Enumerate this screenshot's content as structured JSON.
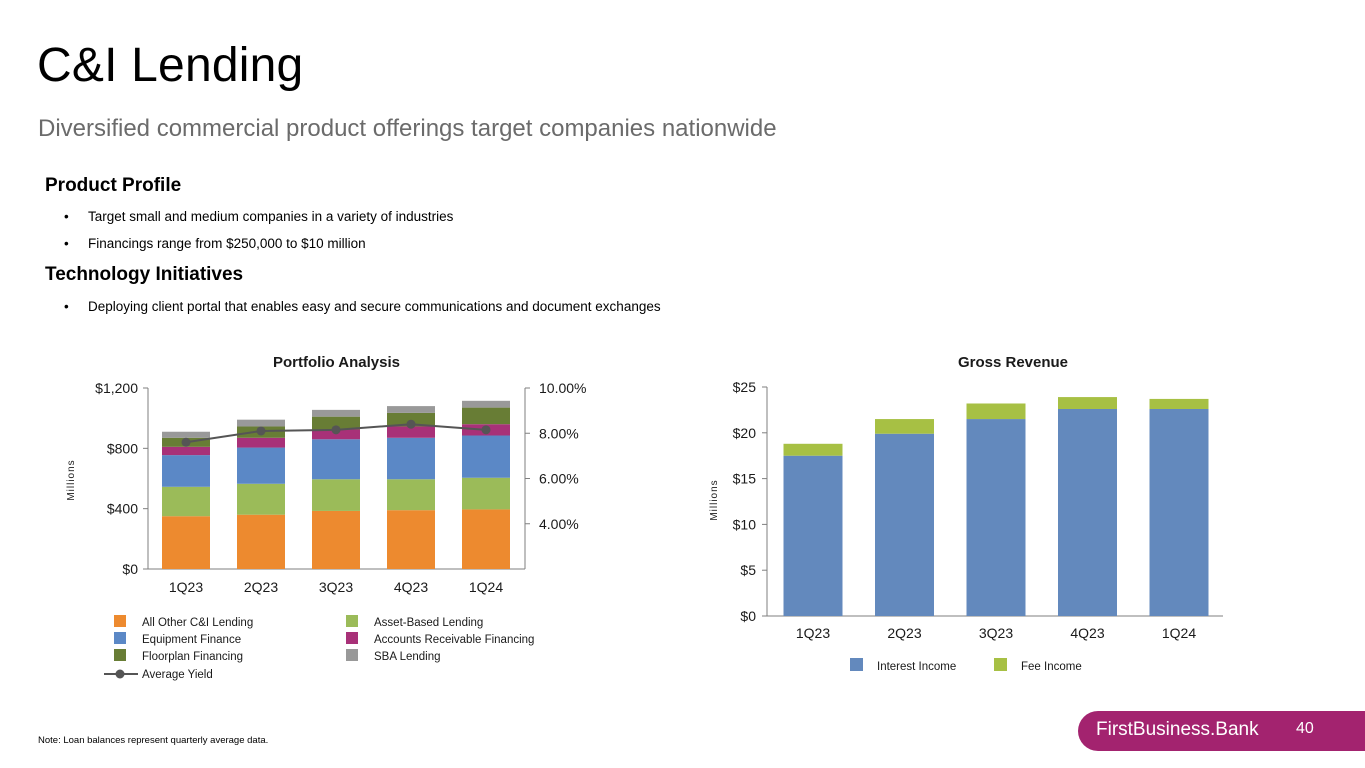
{
  "page": {
    "title": "C&I Lending",
    "subtitle": "Diversified commercial product offerings target companies nationwide",
    "sections": [
      {
        "heading": "Product Profile",
        "bullets": [
          "Target small and medium companies in a variety of industries",
          "Financings range from $250,000 to $10 million"
        ]
      },
      {
        "heading": "Technology Initiatives",
        "bullets": [
          "Deploying client portal that enables easy and secure communications and document exchanges"
        ]
      }
    ],
    "bullet_glyph": "•",
    "note": "Note: Loan balances  represent quarterly average data.",
    "footer": {
      "brand": "FirstBusiness.Bank",
      "page_number": "40"
    }
  },
  "chart_data": [
    {
      "type": "bar",
      "stacked": true,
      "title": "Portfolio Analysis",
      "ylabel": "Millions",
      "ylim": [
        0,
        1200
      ],
      "y_ticks": [
        "$0",
        "$400",
        "$800",
        "$1,200"
      ],
      "y_tick_values": [
        0,
        400,
        800,
        1200
      ],
      "y2lim": [
        2.0,
        10.0
      ],
      "y2_ticks": [
        "4.00%",
        "6.00%",
        "8.00%",
        "10.00%"
      ],
      "y2_tick_values": [
        4.0,
        6.0,
        8.0,
        10.0
      ],
      "categories": [
        "1Q23",
        "2Q23",
        "3Q23",
        "4Q23",
        "1Q24"
      ],
      "series": [
        {
          "name": "All Other C&I Lending",
          "color": "#ed8a2f",
          "values": [
            350,
            360,
            385,
            390,
            395
          ]
        },
        {
          "name": "Asset-Based Lending",
          "color": "#9bbb59",
          "values": [
            195,
            205,
            210,
            205,
            210
          ]
        },
        {
          "name": "Equipment Finance",
          "color": "#5b88c6",
          "values": [
            210,
            240,
            265,
            275,
            280
          ]
        },
        {
          "name": "Accounts Receivable Financing",
          "color": "#a83178",
          "values": [
            55,
            65,
            65,
            75,
            75
          ]
        },
        {
          "name": "Floorplan Financing",
          "color": "#687d35",
          "values": [
            60,
            75,
            85,
            90,
            110
          ]
        },
        {
          "name": "SBA Lending",
          "color": "#999999",
          "values": [
            40,
            45,
            45,
            45,
            45
          ]
        }
      ],
      "line": {
        "name": "Average Yield",
        "color": "#555555",
        "values": [
          7.6,
          8.1,
          8.15,
          8.4,
          8.15
        ]
      },
      "legend": [
        "All Other C&I Lending",
        "Asset-Based Lending",
        "Equipment Finance",
        "Accounts Receivable Financing",
        "Floorplan Financing",
        "SBA Lending",
        "Average Yield"
      ],
      "legend_position": "bottom"
    },
    {
      "type": "bar",
      "stacked": true,
      "title": "Gross Revenue",
      "ylabel": "Millions",
      "ylim": [
        0,
        25
      ],
      "y_ticks": [
        "$0",
        "$5",
        "$10",
        "$15",
        "$20",
        "$25"
      ],
      "y_tick_values": [
        0,
        5,
        10,
        15,
        20,
        25
      ],
      "categories": [
        "1Q23",
        "2Q23",
        "3Q23",
        "4Q23",
        "1Q24"
      ],
      "series": [
        {
          "name": "Interest Income",
          "color": "#6389bd",
          "values": [
            17.5,
            19.9,
            21.5,
            22.6,
            22.6
          ]
        },
        {
          "name": "Fee Income",
          "color": "#a7c044",
          "values": [
            1.3,
            1.6,
            1.7,
            1.3,
            1.1
          ]
        }
      ],
      "legend": [
        "Interest Income",
        "Fee Income"
      ],
      "legend_position": "bottom"
    }
  ]
}
